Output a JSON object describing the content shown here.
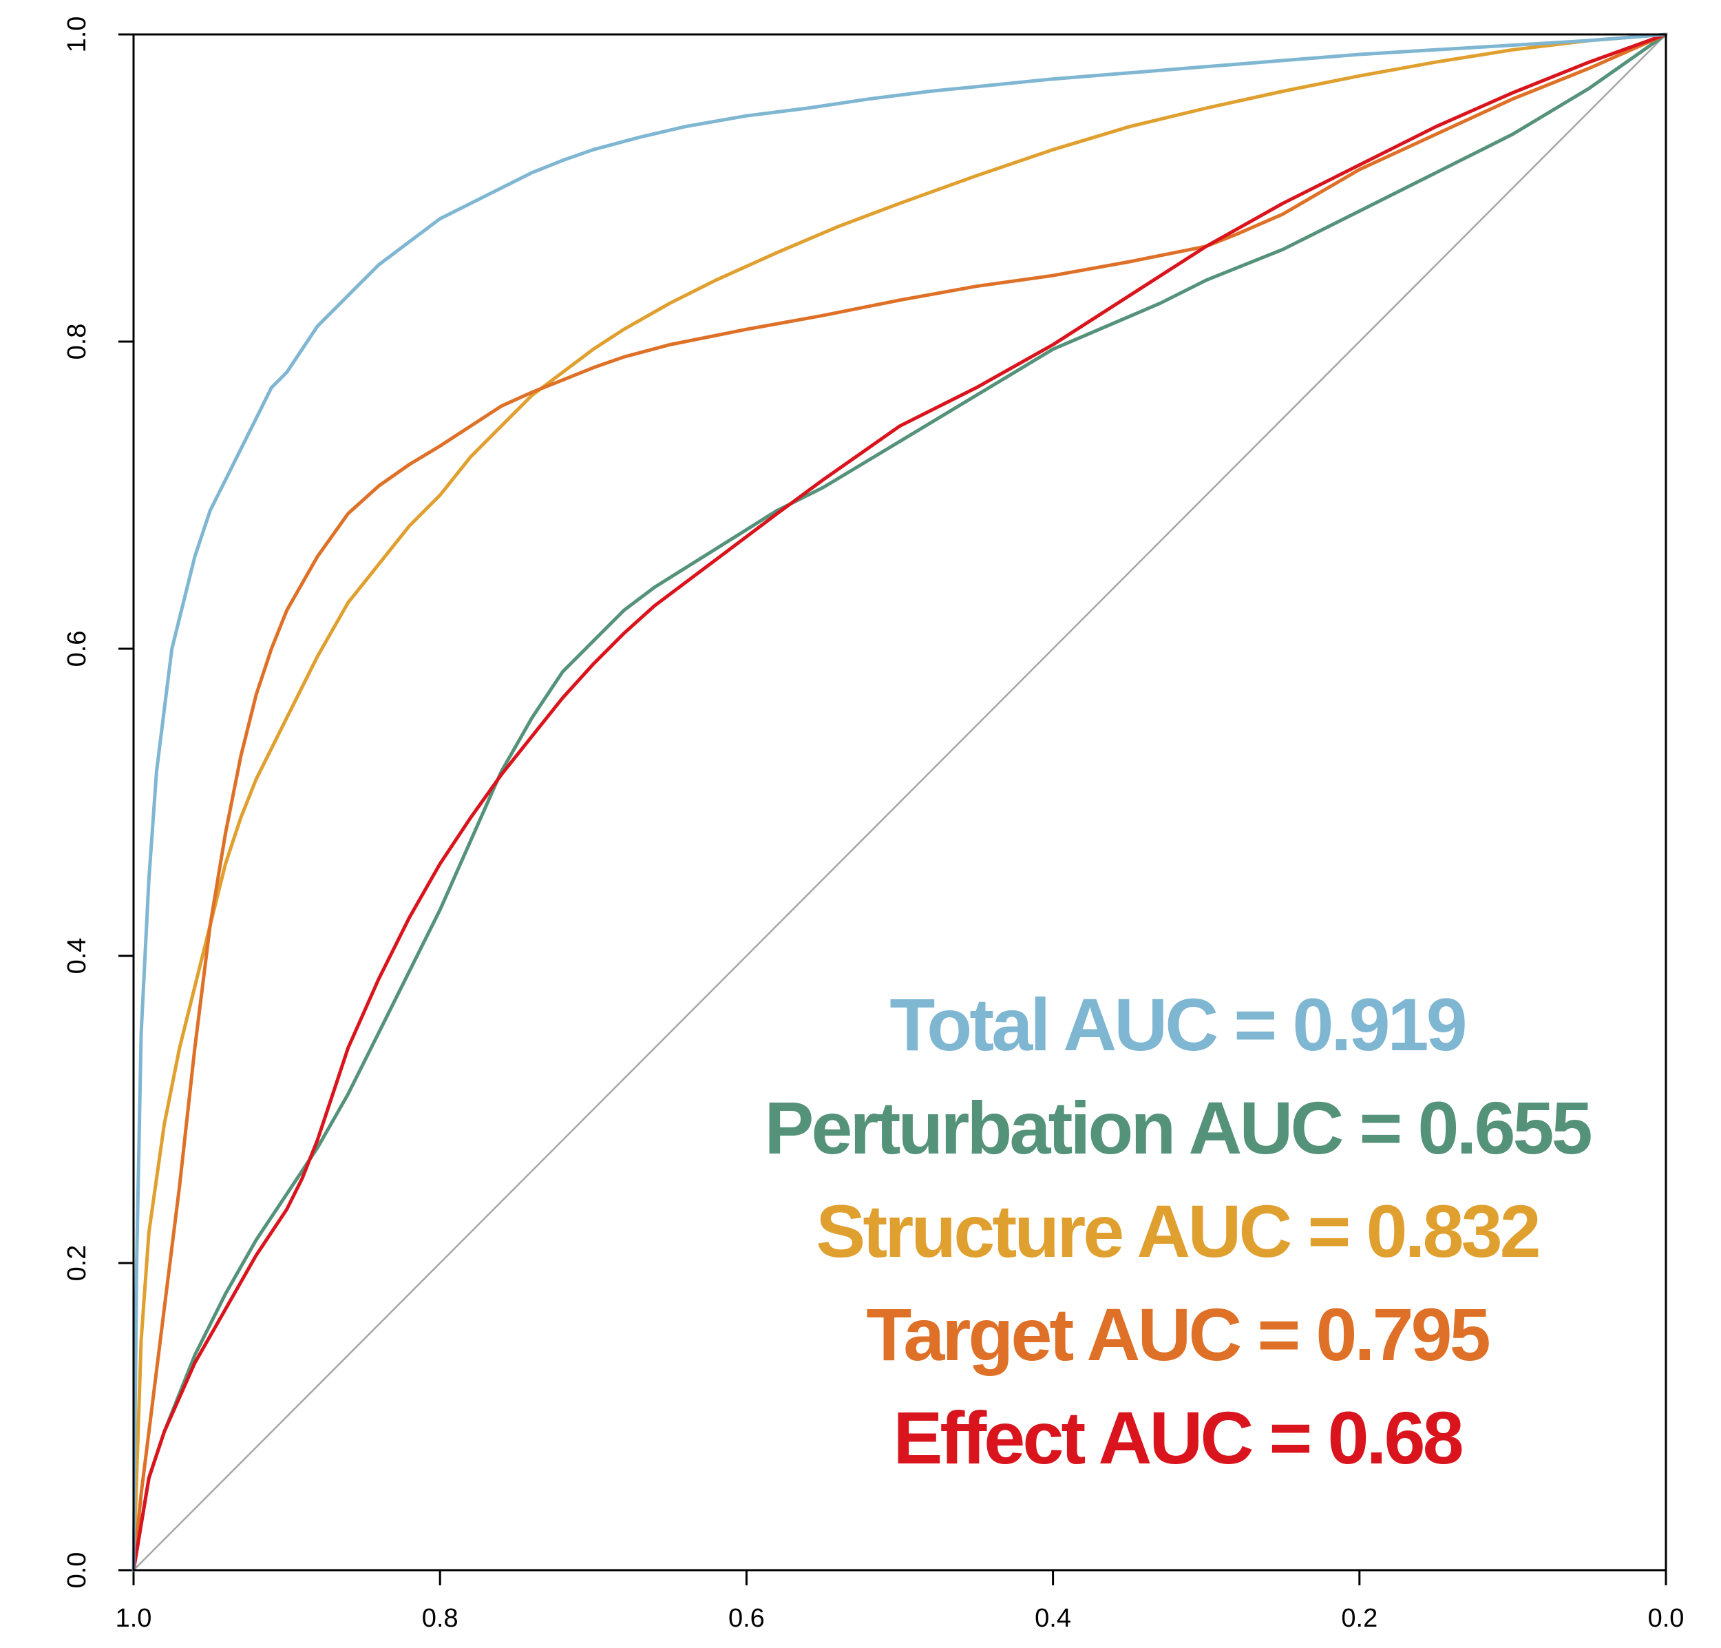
{
  "chart_data": {
    "type": "line",
    "title": "",
    "xlabel": "",
    "ylabel": "",
    "x_reversed": true,
    "xlim": [
      1.0,
      0.0
    ],
    "ylim": [
      0.0,
      1.0
    ],
    "x_ticks": [
      "1.0",
      "0.8",
      "0.6",
      "0.4",
      "0.2",
      "0.0"
    ],
    "y_ticks": [
      "0.0",
      "0.2",
      "0.4",
      "0.6",
      "0.8",
      "1.0"
    ],
    "grid": false,
    "reference_line": {
      "from": [
        1.0,
        0.0
      ],
      "to": [
        0.0,
        1.0
      ],
      "color": "#a6a6a6"
    },
    "legend_position": "bottom-right",
    "series": [
      {
        "name": "Total AUC = 0.919",
        "color": "#7fb6d2",
        "x": [
          1.0,
          0.998,
          0.995,
          0.99,
          0.985,
          0.98,
          0.975,
          0.97,
          0.96,
          0.95,
          0.94,
          0.93,
          0.92,
          0.91,
          0.9,
          0.88,
          0.86,
          0.84,
          0.82,
          0.8,
          0.78,
          0.76,
          0.74,
          0.72,
          0.7,
          0.67,
          0.64,
          0.6,
          0.56,
          0.52,
          0.48,
          0.44,
          0.4,
          0.35,
          0.3,
          0.25,
          0.2,
          0.15,
          0.1,
          0.05,
          0.0
        ],
        "y": [
          0.0,
          0.2,
          0.35,
          0.45,
          0.52,
          0.56,
          0.6,
          0.62,
          0.66,
          0.69,
          0.71,
          0.73,
          0.75,
          0.77,
          0.78,
          0.81,
          0.83,
          0.85,
          0.865,
          0.88,
          0.89,
          0.9,
          0.91,
          0.918,
          0.925,
          0.933,
          0.94,
          0.947,
          0.952,
          0.958,
          0.963,
          0.967,
          0.971,
          0.975,
          0.979,
          0.983,
          0.987,
          0.99,
          0.993,
          0.996,
          1.0
        ]
      },
      {
        "name": "Perturbation AUC = 0.655",
        "color": "#55927a",
        "x": [
          1.0,
          0.99,
          0.98,
          0.96,
          0.94,
          0.92,
          0.9,
          0.88,
          0.86,
          0.84,
          0.82,
          0.8,
          0.78,
          0.76,
          0.74,
          0.72,
          0.7,
          0.68,
          0.66,
          0.62,
          0.58,
          0.55,
          0.5,
          0.45,
          0.4,
          0.33,
          0.3,
          0.25,
          0.2,
          0.15,
          0.1,
          0.05,
          0.0
        ],
        "y": [
          0.0,
          0.06,
          0.09,
          0.14,
          0.18,
          0.215,
          0.245,
          0.275,
          0.31,
          0.35,
          0.39,
          0.43,
          0.475,
          0.52,
          0.555,
          0.585,
          0.605,
          0.625,
          0.64,
          0.665,
          0.69,
          0.705,
          0.735,
          0.765,
          0.795,
          0.825,
          0.84,
          0.86,
          0.885,
          0.91,
          0.935,
          0.965,
          1.0
        ]
      },
      {
        "name": "Structure AUC = 0.832",
        "color": "#e0a02f",
        "x": [
          1.0,
          0.995,
          0.99,
          0.98,
          0.97,
          0.96,
          0.95,
          0.94,
          0.93,
          0.92,
          0.9,
          0.88,
          0.86,
          0.84,
          0.82,
          0.8,
          0.78,
          0.76,
          0.74,
          0.72,
          0.7,
          0.68,
          0.65,
          0.62,
          0.58,
          0.54,
          0.5,
          0.45,
          0.4,
          0.35,
          0.3,
          0.25,
          0.2,
          0.15,
          0.1,
          0.05,
          0.0
        ],
        "y": [
          0.0,
          0.15,
          0.22,
          0.29,
          0.34,
          0.38,
          0.42,
          0.46,
          0.49,
          0.515,
          0.555,
          0.595,
          0.63,
          0.655,
          0.68,
          0.7,
          0.725,
          0.745,
          0.765,
          0.78,
          0.795,
          0.808,
          0.825,
          0.84,
          0.858,
          0.875,
          0.89,
          0.908,
          0.925,
          0.94,
          0.952,
          0.963,
          0.973,
          0.982,
          0.99,
          0.996,
          1.0
        ]
      },
      {
        "name": "Target AUC = 0.795",
        "color": "#de7027",
        "x": [
          1.0,
          0.995,
          0.99,
          0.98,
          0.97,
          0.96,
          0.95,
          0.94,
          0.93,
          0.92,
          0.91,
          0.9,
          0.88,
          0.86,
          0.84,
          0.82,
          0.8,
          0.78,
          0.76,
          0.74,
          0.72,
          0.7,
          0.68,
          0.65,
          0.6,
          0.55,
          0.5,
          0.45,
          0.4,
          0.35,
          0.3,
          0.28,
          0.25,
          0.2,
          0.15,
          0.1,
          0.05,
          0.0
        ],
        "y": [
          0.0,
          0.05,
          0.09,
          0.17,
          0.25,
          0.34,
          0.42,
          0.48,
          0.53,
          0.57,
          0.6,
          0.625,
          0.66,
          0.688,
          0.706,
          0.72,
          0.732,
          0.745,
          0.758,
          0.767,
          0.775,
          0.783,
          0.79,
          0.798,
          0.808,
          0.817,
          0.827,
          0.836,
          0.843,
          0.852,
          0.862,
          0.87,
          0.883,
          0.912,
          0.935,
          0.958,
          0.978,
          1.0
        ]
      },
      {
        "name": "Effect AUC = 0.68",
        "color": "#d9141d",
        "x": [
          1.0,
          0.99,
          0.98,
          0.96,
          0.94,
          0.92,
          0.9,
          0.89,
          0.88,
          0.87,
          0.86,
          0.84,
          0.82,
          0.8,
          0.78,
          0.76,
          0.74,
          0.72,
          0.7,
          0.68,
          0.66,
          0.62,
          0.58,
          0.55,
          0.5,
          0.45,
          0.4,
          0.35,
          0.3,
          0.25,
          0.2,
          0.15,
          0.1,
          0.05,
          0.0
        ],
        "y": [
          0.0,
          0.06,
          0.09,
          0.135,
          0.17,
          0.205,
          0.235,
          0.255,
          0.28,
          0.31,
          0.34,
          0.385,
          0.425,
          0.46,
          0.49,
          0.518,
          0.543,
          0.568,
          0.59,
          0.61,
          0.628,
          0.658,
          0.688,
          0.71,
          0.745,
          0.77,
          0.798,
          0.83,
          0.862,
          0.89,
          0.915,
          0.94,
          0.962,
          0.982,
          1.0
        ]
      }
    ]
  }
}
